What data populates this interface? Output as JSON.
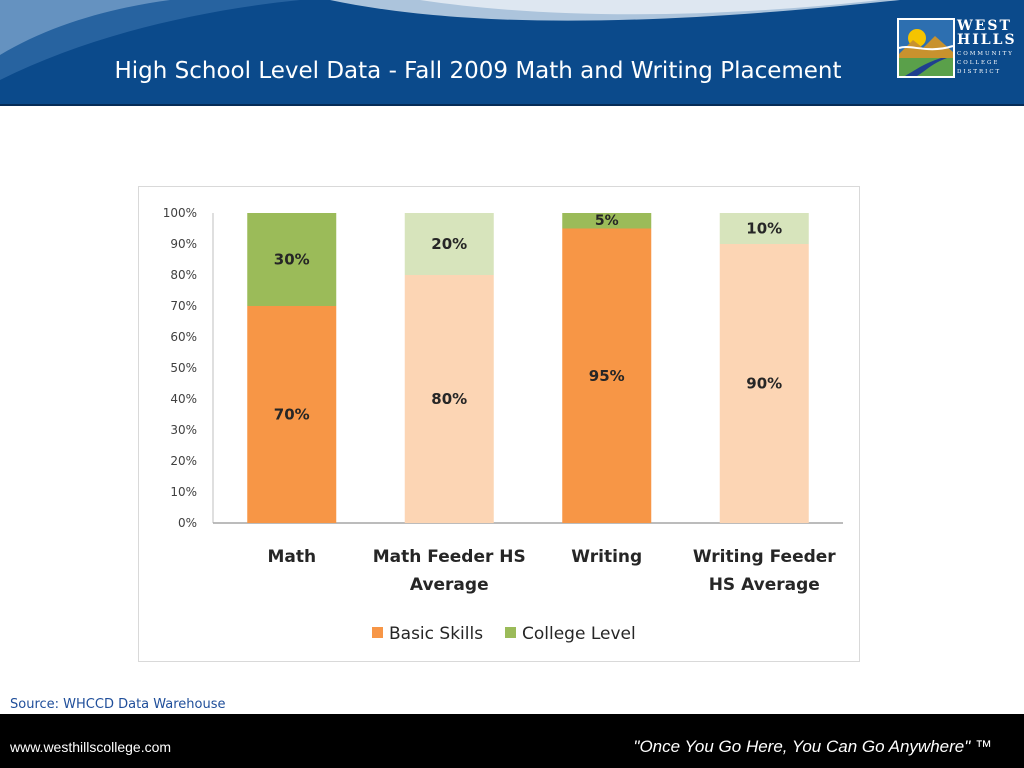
{
  "slide": {
    "title": "High School Level Data - Fall 2009 Math and Writing Placement",
    "source": "Source: WHCCD Data Warehouse",
    "footer_url": "www.westhillscollege.com",
    "footer_tagline": "\"Once You Go Here, You Can Go Anywhere\" ™"
  },
  "logo": {
    "line1": "WEST",
    "line2": "HILLS",
    "line3": "COMMUNITY",
    "line4": "COLLEGE",
    "line5": "DISTRICT",
    "icon": "mountains-sun-road-logo-icon"
  },
  "colors": {
    "header_bg": "#0b4a8b",
    "basic_skills": "#f79646",
    "college_level": "#9bbb59",
    "basic_skills_light": "#fcd5b4",
    "college_level_light": "#d7e4bc",
    "footer_bg": "#000000"
  },
  "chart_data": {
    "type": "bar",
    "stacked": true,
    "categories": [
      "Math",
      "Math Feeder HS Average",
      "Writing",
      "Writing Feeder HS Average"
    ],
    "category_lines": [
      [
        "Math"
      ],
      [
        "Math Feeder HS",
        "Average"
      ],
      [
        "Writing"
      ],
      [
        "Writing Feeder",
        "HS Average"
      ]
    ],
    "series": [
      {
        "name": "Basic Skills",
        "values": [
          70,
          80,
          95,
          90
        ],
        "labels": [
          "70%",
          "80%",
          "95%",
          "90%"
        ]
      },
      {
        "name": "College Level",
        "values": [
          30,
          20,
          5,
          10
        ],
        "labels": [
          "30%",
          "20%",
          "5%",
          "10%"
        ]
      }
    ],
    "ylim": [
      0,
      100
    ],
    "yticks": [
      "0%",
      "10%",
      "20%",
      "30%",
      "40%",
      "50%",
      "60%",
      "70%",
      "80%",
      "90%",
      "100%"
    ],
    "legend_position": "bottom",
    "grid": false
  }
}
